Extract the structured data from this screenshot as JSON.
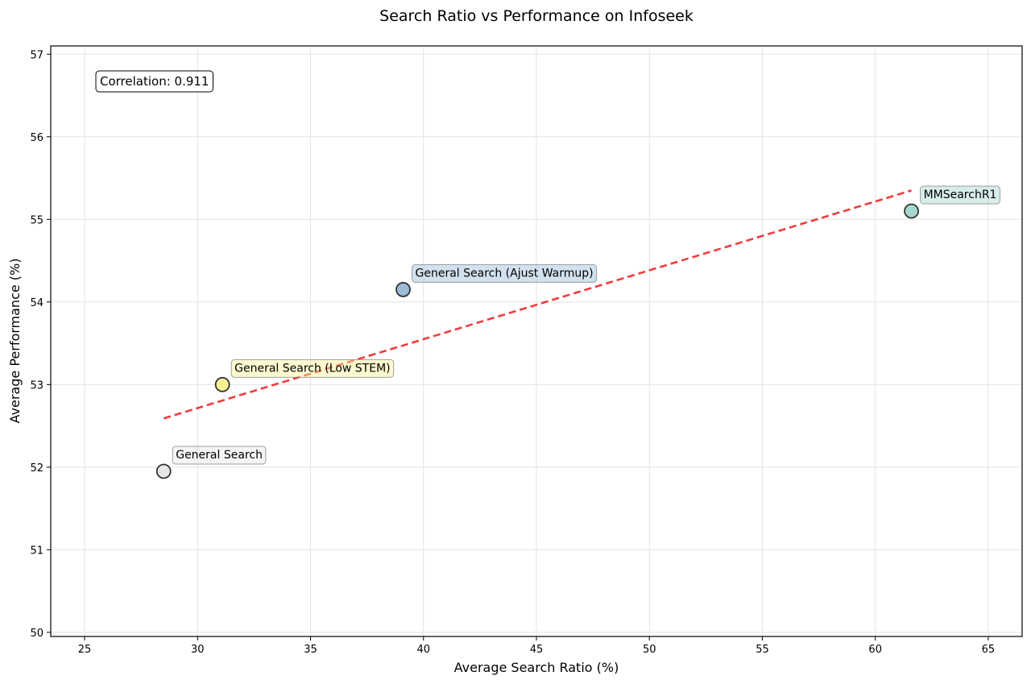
{
  "chart_data": {
    "type": "scatter",
    "title": "Search Ratio vs Performance on Infoseek",
    "xlabel": "Average Search Ratio (%)",
    "ylabel": "Average Performance (%)",
    "xlim": [
      23.5,
      66.5
    ],
    "ylim": [
      49.95,
      57.1
    ],
    "xticks": [
      25,
      30,
      35,
      40,
      45,
      50,
      55,
      60,
      65
    ],
    "yticks": [
      50,
      51,
      52,
      53,
      54,
      55,
      56,
      57
    ],
    "grid": true,
    "annotation": "Correlation: 0.911",
    "points": [
      {
        "label": "General Search",
        "x": 28.5,
        "y": 51.95,
        "color": "#e6e6e6"
      },
      {
        "label": "General Search (Low STEM)",
        "x": 31.1,
        "y": 53.0,
        "color": "#fbef94"
      },
      {
        "label": "General Search (Ajust Warmup)",
        "x": 39.1,
        "y": 54.15,
        "color": "#9bbcd9"
      },
      {
        "label": "MMSearchR1",
        "x": 61.6,
        "y": 55.1,
        "color": "#a6d8cf"
      }
    ],
    "trendline": {
      "x": [
        28.5,
        61.6
      ],
      "y": [
        52.59,
        55.35
      ],
      "color": "#ee3333",
      "style": "dashed"
    }
  }
}
